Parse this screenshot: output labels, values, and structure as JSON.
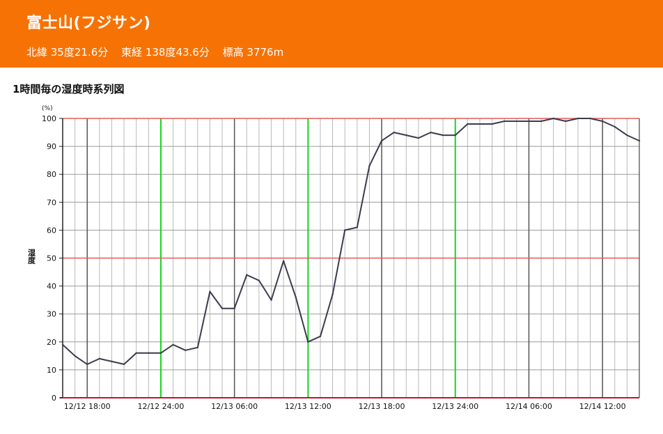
{
  "station": {
    "name": "富士山(フジサン)",
    "latitude": "北緯 35度21.6分",
    "longitude": "東経 138度43.6分",
    "elevation": "標高 3776m"
  },
  "section_title": "1時間毎の湿度時系列図",
  "colors": {
    "header_bg": "#f77205",
    "line": "#3a3c4e",
    "day_line": "#17d51e",
    "limit_line": "#e05a5a",
    "axis_zero": "#c8102e"
  },
  "chart_data": {
    "type": "line",
    "title": "",
    "ylabel": "湿度",
    "yunit": "(%)",
    "ylim": [
      0,
      100
    ],
    "yticks": [
      0,
      10,
      20,
      30,
      40,
      50,
      60,
      70,
      80,
      90,
      100
    ],
    "grid": true,
    "x_start": "12/12 16:00",
    "x_end": "12/14 15:00",
    "xtick_labels": [
      "12/12 18:00",
      "12/12 24:00",
      "12/13 06:00",
      "12/13 12:00",
      "12/13 18:00",
      "12/13 24:00",
      "12/14 06:00",
      "12/14 12:00"
    ],
    "day_boundaries": [
      "12/12 24:00",
      "12/13 12:00",
      "12/13 24:00"
    ],
    "reference_lines": [
      50,
      100
    ],
    "series": [
      {
        "values": [
          19,
          15,
          12,
          14,
          13,
          12,
          16,
          16,
          16,
          19,
          17,
          18,
          38,
          32,
          32,
          44,
          42,
          35,
          49,
          36,
          20,
          22,
          37,
          60,
          61,
          83,
          92,
          95,
          94,
          93,
          95,
          94,
          94,
          98,
          98,
          98,
          99,
          99,
          99,
          99,
          100,
          99,
          100,
          100,
          99,
          97,
          94,
          92
        ]
      }
    ]
  }
}
